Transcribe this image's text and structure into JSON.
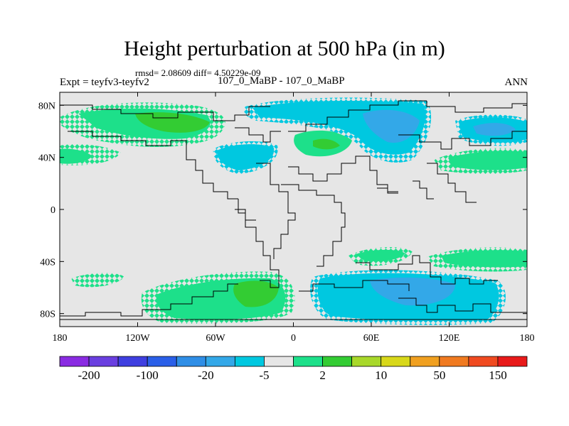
{
  "title": "Height perturbation at 500 hPa (in m)",
  "stats_line": "rmsd= 2.08609 diff= 4.50229e-09",
  "left_label": "Expt = teyfv3-teyfv2",
  "center_label": "107_0_MaBP - 107_0_MaBP",
  "right_label": "ANN",
  "map": {
    "lon_range": [
      -180,
      180
    ],
    "lat_range": [
      -90,
      90
    ],
    "x_ticks": [
      {
        "lon": -180,
        "label": "180"
      },
      {
        "lon": -120,
        "label": "120W"
      },
      {
        "lon": -60,
        "label": "60W"
      },
      {
        "lon": 0,
        "label": "0"
      },
      {
        "lon": 60,
        "label": "60E"
      },
      {
        "lon": 120,
        "label": "120E"
      },
      {
        "lon": 180,
        "label": "180"
      }
    ],
    "y_ticks": [
      {
        "lat": 80,
        "label": "80N"
      },
      {
        "lat": 40,
        "label": "40N"
      },
      {
        "lat": 0,
        "label": "0"
      },
      {
        "lat": -40,
        "label": "40S"
      },
      {
        "lat": -80,
        "label": "80S"
      }
    ],
    "background_color": "#e6e6e6"
  },
  "colorbar": {
    "colors": [
      "#8a2be2",
      "#6a3fe0",
      "#3f3fe0",
      "#2a5fe8",
      "#2f8ee6",
      "#33a8e8",
      "#00c8e0",
      "#e6e6e6",
      "#1de08a",
      "#33cc33",
      "#a8d82a",
      "#d8d81a",
      "#f0a020",
      "#f07a20",
      "#f04a20",
      "#e81a1a"
    ],
    "labels": [
      "-200",
      "-100",
      "-20",
      "-5",
      "2",
      "10",
      "50",
      "150"
    ]
  }
}
